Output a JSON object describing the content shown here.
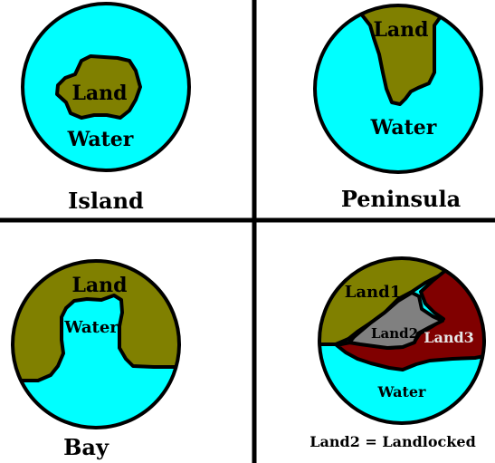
{
  "colors": {
    "water": "#00ffff",
    "land": "#808000",
    "land_grey": "#808080",
    "land_red": "#800000",
    "outline": "#000000",
    "background": "#ffffff"
  },
  "panels": {
    "island": {
      "land_label": "Land",
      "water_label": "Water",
      "caption": "Island"
    },
    "peninsula": {
      "land_label": "Land",
      "water_label": "Water",
      "caption": "Peninsula"
    },
    "bay": {
      "land_label": "Land",
      "water_label": "Water",
      "caption": "Bay"
    },
    "landlocked": {
      "land1_label": "Land1",
      "land2_label": "Land2",
      "land3_label": "Land3",
      "water_label": "Water",
      "caption": "Land2 = Landlocked"
    }
  }
}
